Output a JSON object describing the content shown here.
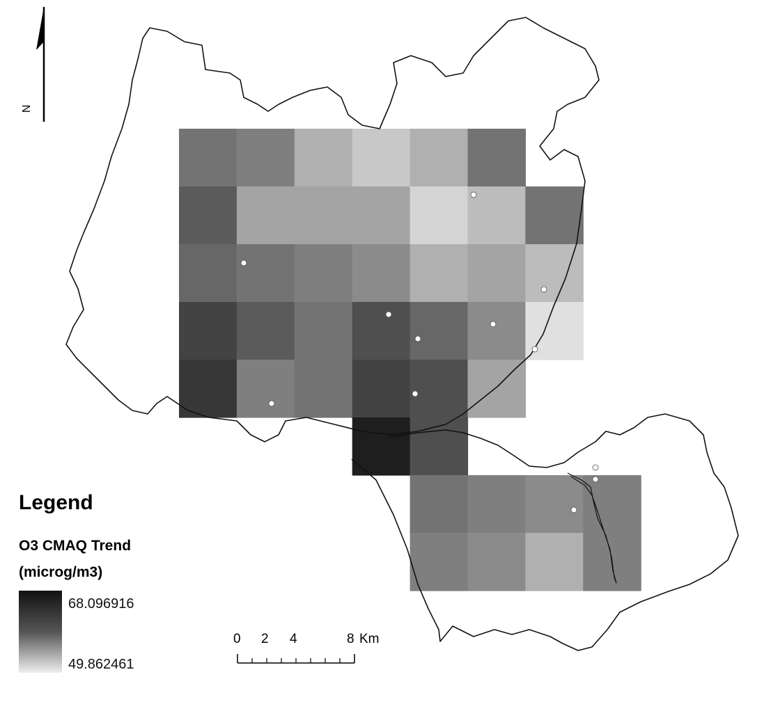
{
  "north_arrow": {
    "letter": "N",
    "icon": "north-arrow-icon"
  },
  "legend": {
    "title": "Legend",
    "layer_line1": "O3 CMAQ Trend",
    "layer_line2": "(microg/m3)",
    "max_value": "68.096916",
    "min_value": "49.862461",
    "ramp_colors": [
      "#111111",
      "#eeeeee"
    ]
  },
  "scale_bar": {
    "labels": [
      "0",
      "2",
      "4",
      "8"
    ],
    "unit": "Km"
  },
  "grid_values": {
    "description_units": "microg/m3",
    "rows": [
      [
        60,
        59,
        55,
        53,
        55,
        60,
        null
      ],
      [
        62,
        56,
        56,
        56,
        52,
        54,
        60
      ],
      [
        61,
        60,
        59,
        58,
        55,
        56,
        54
      ],
      [
        64,
        62,
        60,
        63,
        61,
        58,
        51
      ],
      [
        65,
        59,
        60,
        64,
        63,
        56,
        null
      ],
      [
        null,
        null,
        null,
        67,
        63,
        null,
        null
      ],
      [
        null,
        null,
        null,
        null,
        60,
        59,
        58,
        59
      ],
      [
        null,
        null,
        null,
        null,
        59,
        58,
        55,
        59
      ]
    ]
  }
}
